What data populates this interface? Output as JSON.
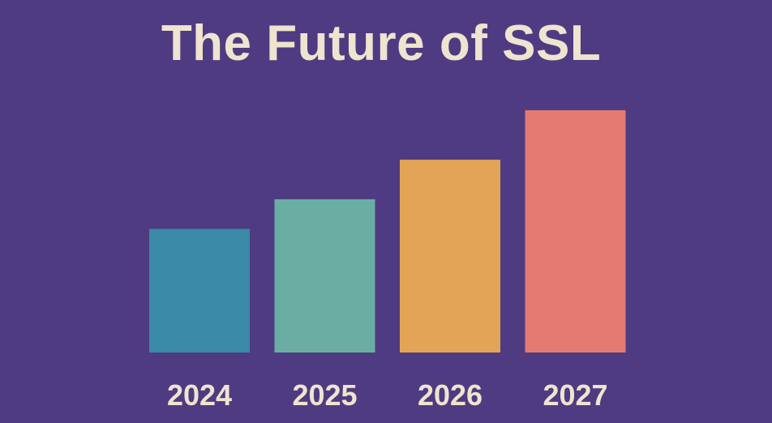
{
  "chart_data": {
    "type": "bar",
    "title": "The Future of SSL",
    "xlabel": "",
    "ylabel": "",
    "categories": [
      "2024",
      "2025",
      "2026",
      "2027"
    ],
    "values": [
      50,
      62,
      78,
      98
    ],
    "ylim": [
      0,
      100
    ],
    "grid": false,
    "legend": "none",
    "colors": [
      "#3a8aa8",
      "#6aaea3",
      "#e2a456",
      "#e57a72"
    ],
    "background": "#4f3b82",
    "text_color": "#efe4cf"
  }
}
